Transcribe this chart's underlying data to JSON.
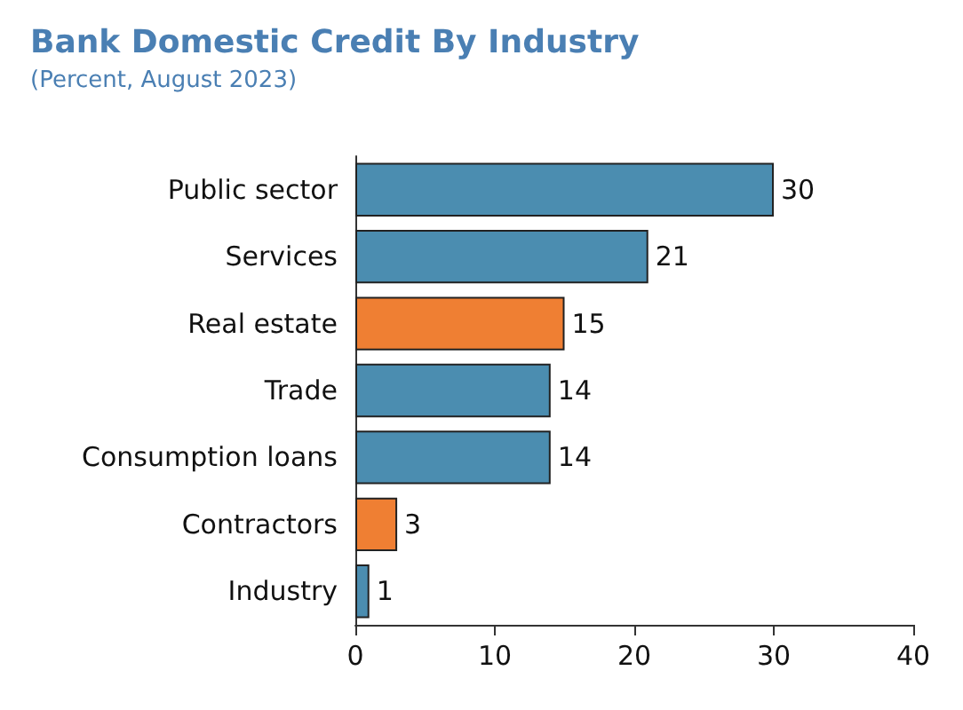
{
  "chart_data": {
    "type": "bar",
    "orientation": "horizontal",
    "title": "Bank Domestic Credit By Industry",
    "subtitle": "(Percent, August 2023)",
    "categories": [
      "Public sector",
      "Services",
      "Real estate",
      "Trade",
      "Consumption loans",
      "Contractors",
      "Industry"
    ],
    "values": [
      30,
      21,
      15,
      14,
      14,
      3,
      1
    ],
    "colors": [
      "#4b8db0",
      "#4b8db0",
      "#ef7f33",
      "#4b8db0",
      "#4b8db0",
      "#ef7f33",
      "#4b8db0"
    ],
    "xlim": [
      0,
      40
    ],
    "xticks": [
      0,
      10,
      20,
      30,
      40
    ],
    "grid": false,
    "data_labels": true
  }
}
